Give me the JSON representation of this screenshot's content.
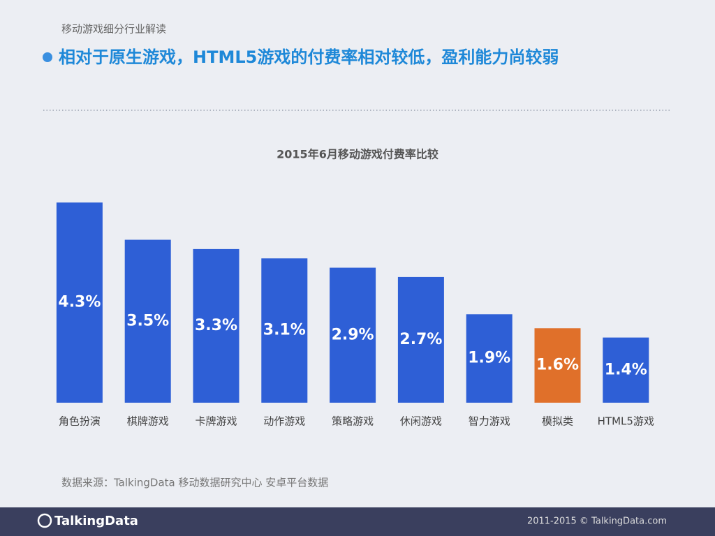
{
  "header": {
    "section": "移动游戏细分行业解读",
    "title": "相对于原生游戏，HTML5游戏的付费率相对较低，盈利能力尚较弱"
  },
  "chart_data": {
    "type": "bar",
    "title": "2015年6月移动游戏付费率比较",
    "categories": [
      "角色扮演",
      "棋牌游戏",
      "卡牌游戏",
      "动作游戏",
      "策略游戏",
      "休闲游戏",
      "智力游戏",
      "模拟类",
      "HTML5游戏"
    ],
    "values": [
      4.3,
      3.5,
      3.3,
      3.1,
      2.9,
      2.7,
      1.9,
      1.6,
      1.4
    ],
    "value_labels": [
      "4.3%",
      "3.5%",
      "3.3%",
      "3.1%",
      "2.9%",
      "2.7%",
      "1.9%",
      "1.6%",
      "1.4%"
    ],
    "colors": [
      "#2e5fd6",
      "#2e5fd6",
      "#2e5fd6",
      "#2e5fd6",
      "#2e5fd6",
      "#2e5fd6",
      "#2e5fd6",
      "#e0702a",
      "#2e5fd6"
    ]
  },
  "source": "数据来源：TalkingData 移动数据研究中心 安卓平台数据",
  "footer": {
    "logo": "TalkingData",
    "copyright": "2011-2015 © TalkingData.com"
  }
}
